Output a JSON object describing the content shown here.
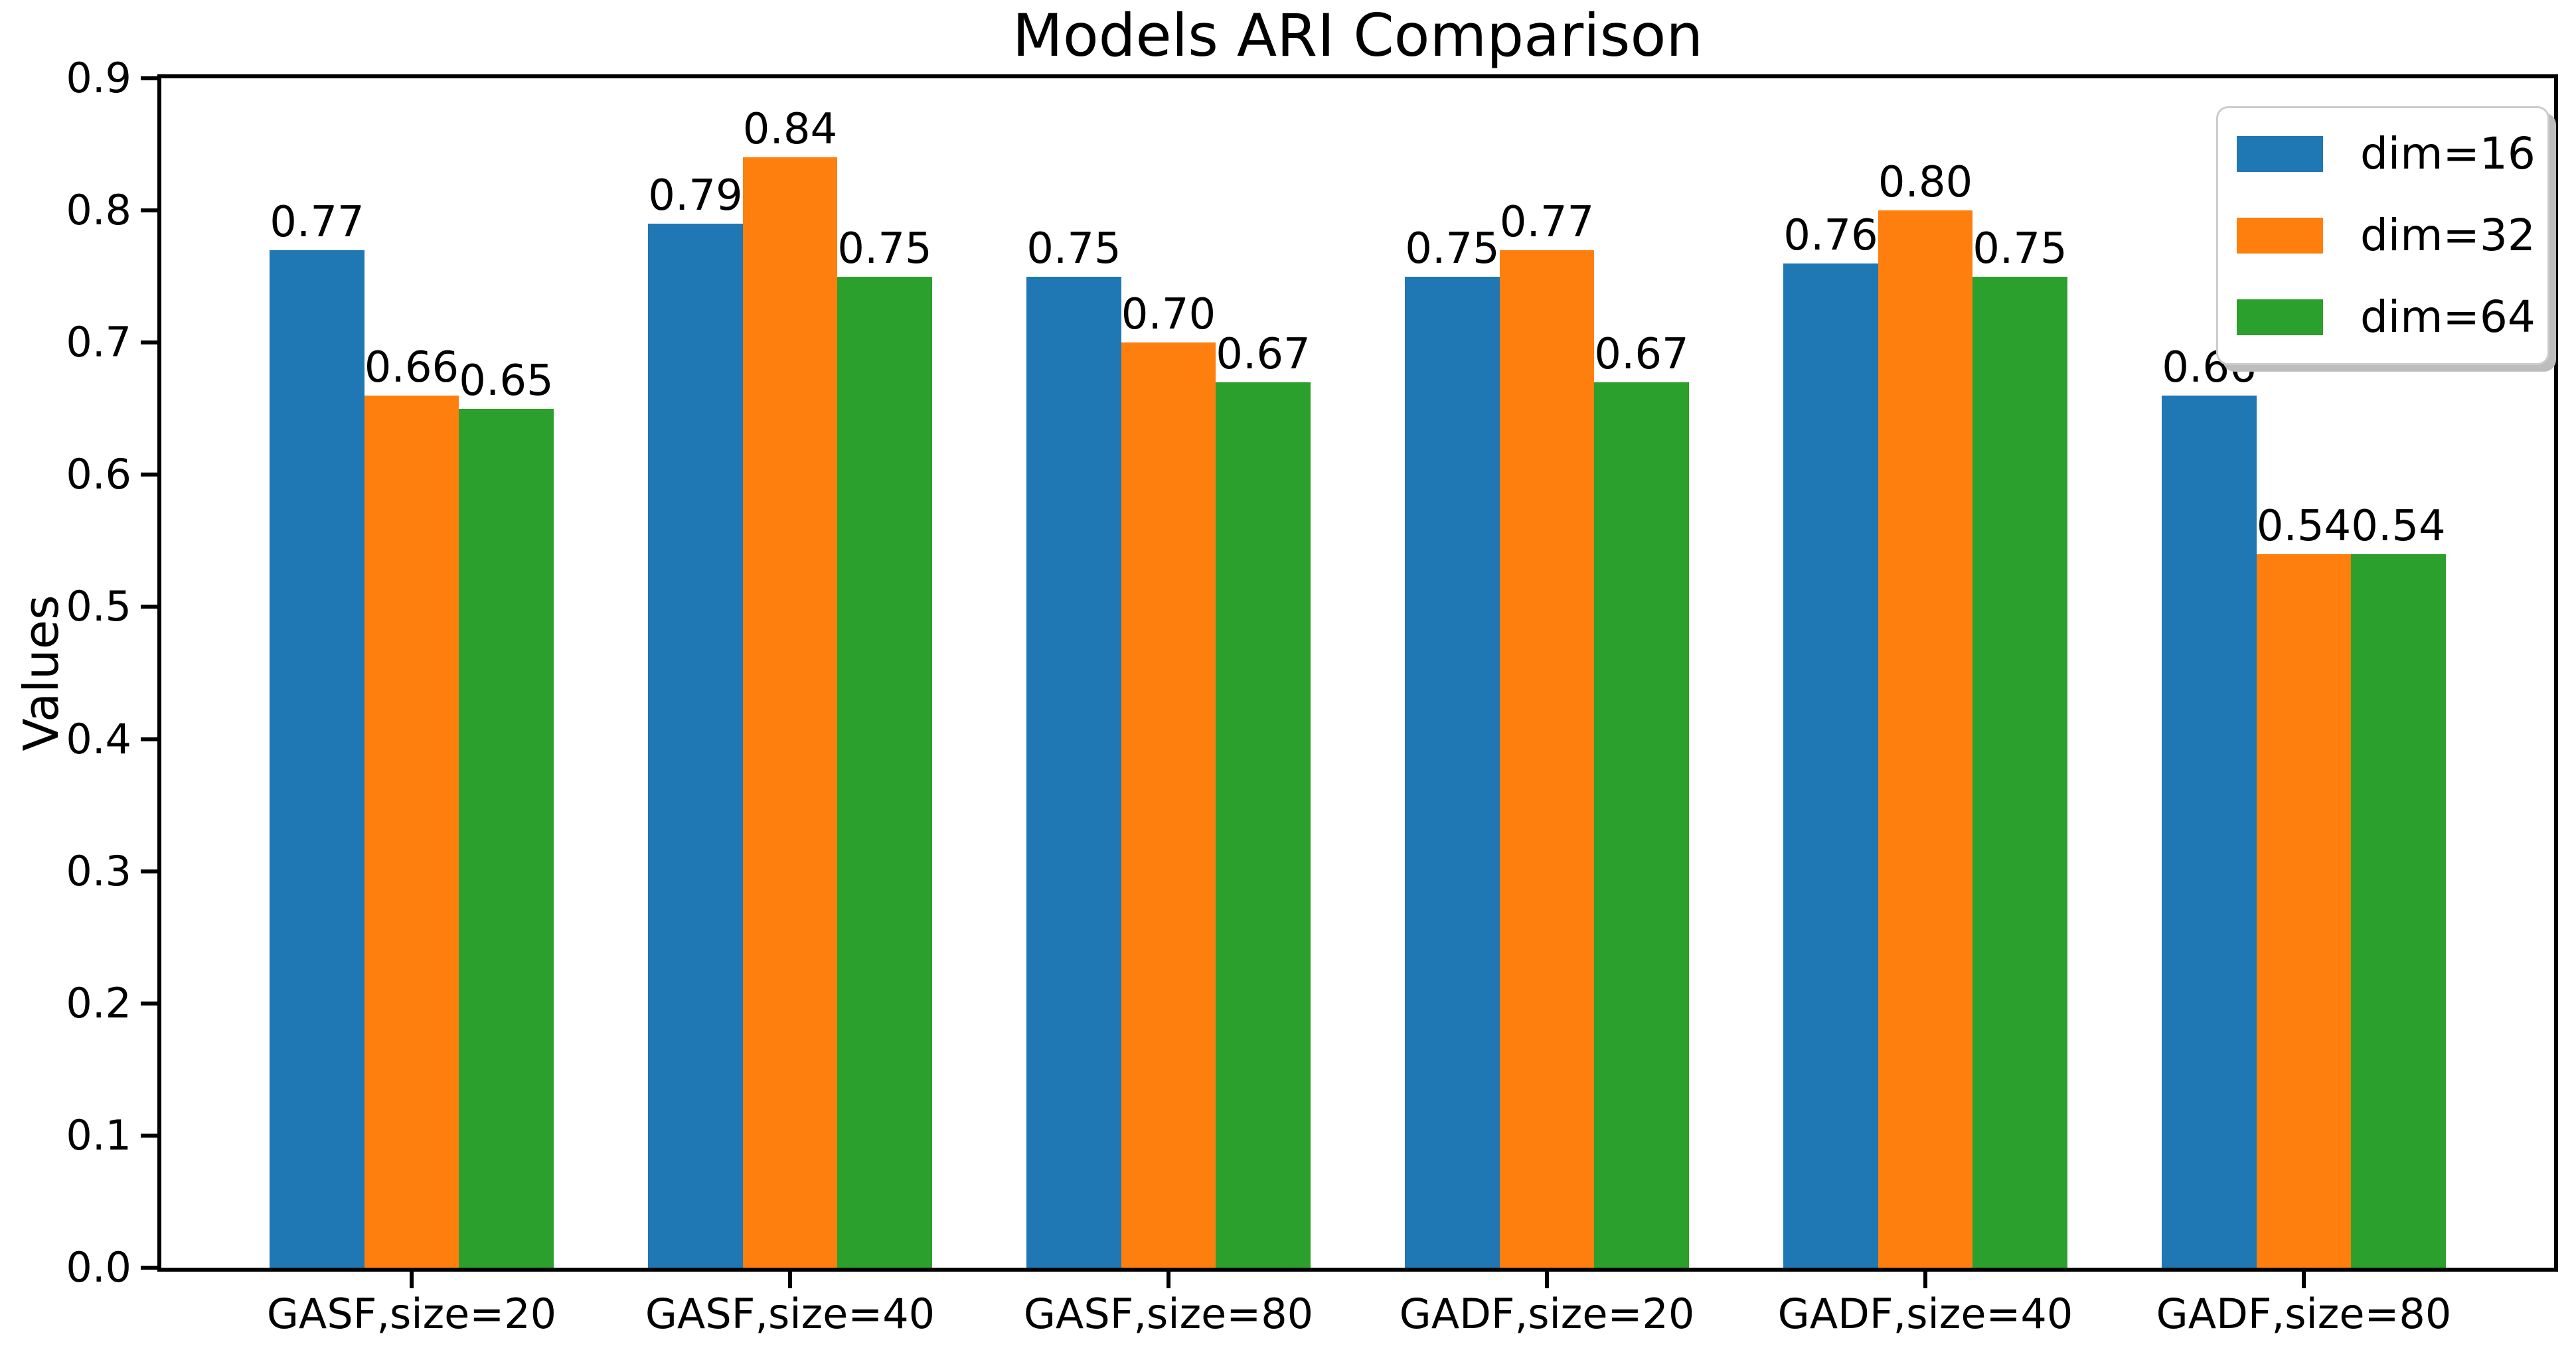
{
  "figure": {
    "background": "#ffffff"
  },
  "chart_data": {
    "type": "bar",
    "title": "Models ARI Comparison",
    "xlabel": "",
    "ylabel": "Values",
    "categories": [
      "GASF,size=20",
      "GASF,size=40",
      "GASF,size=80",
      "GADF,size=20",
      "GADF,size=40",
      "GADF,size=80"
    ],
    "series": [
      {
        "name": "dim=16",
        "color": "#1f77b4",
        "values": [
          0.77,
          0.79,
          0.75,
          0.75,
          0.76,
          0.66
        ]
      },
      {
        "name": "dim=32",
        "color": "#ff7f0e",
        "values": [
          0.66,
          0.84,
          0.7,
          0.77,
          0.8,
          0.54
        ]
      },
      {
        "name": "dim=64",
        "color": "#2ca02c",
        "values": [
          0.65,
          0.75,
          0.67,
          0.67,
          0.75,
          0.54
        ]
      }
    ],
    "ylim": [
      0.0,
      0.9
    ],
    "yticks": [
      "0.0",
      "0.1",
      "0.2",
      "0.3",
      "0.4",
      "0.5",
      "0.6",
      "0.7",
      "0.8",
      "0.9"
    ],
    "value_label_decimals": 2,
    "bar_group_width": 0.75,
    "grid": false,
    "legend_position": "upper right",
    "axis_color": "#000000",
    "text_color": "#000000"
  }
}
